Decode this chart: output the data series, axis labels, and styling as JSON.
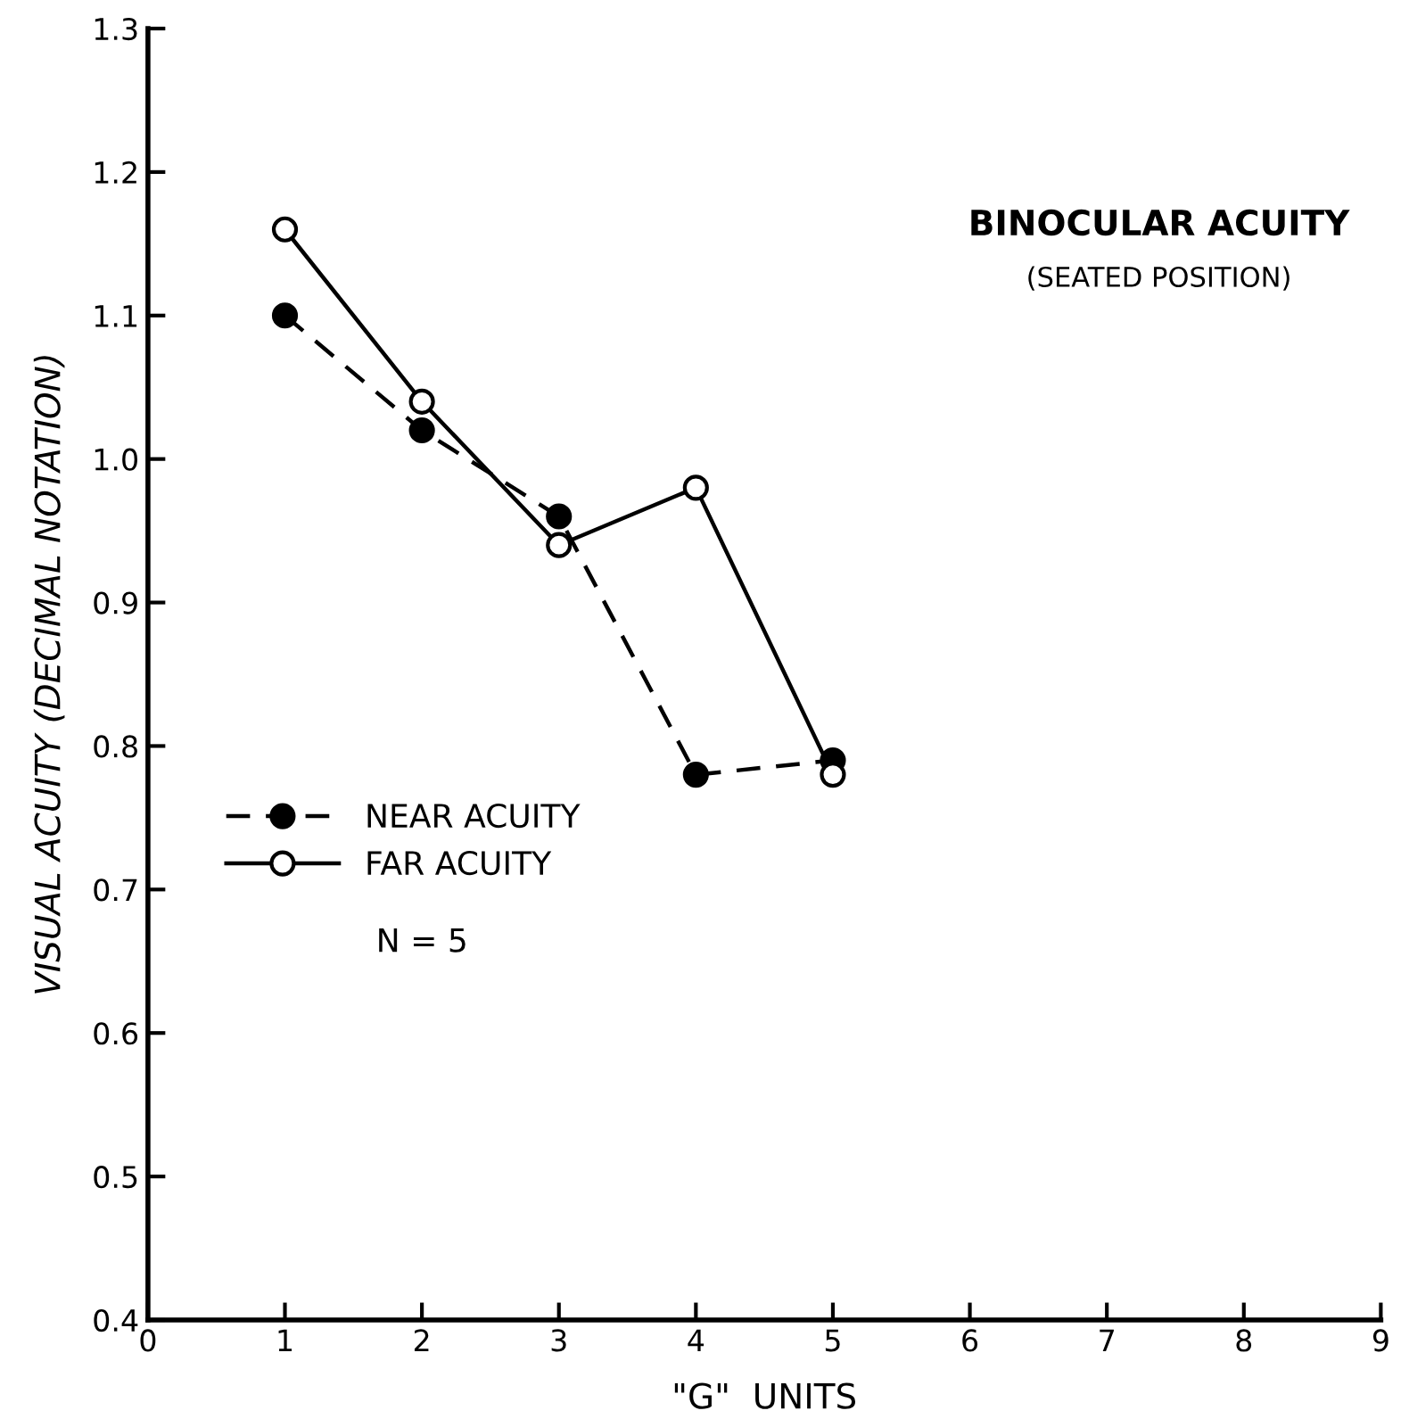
{
  "chart_data": {
    "type": "line",
    "title": "BINOCULAR ACUITY",
    "subtitle": "(SEATED POSITION)",
    "xlabel": "\"G\"  UNITS",
    "ylabel": "VISUAL ACUITY (DECIMAL NOTATION)",
    "x": [
      1,
      2,
      3,
      4,
      5
    ],
    "series": [
      {
        "name": "NEAR ACUITY",
        "color": "#000000",
        "values": [
          1.1,
          1.02,
          0.96,
          0.78,
          0.79
        ],
        "marker": "circle",
        "line_style": "dashed"
      },
      {
        "name": "FAR ACUITY",
        "color": "#000000",
        "values": [
          1.16,
          1.04,
          0.94,
          0.98,
          0.78
        ],
        "marker": "circle",
        "line_style": "solid"
      }
    ],
    "annotations": [
      "N = 5"
    ],
    "xlim": [
      0,
      9
    ],
    "xticks": [
      0,
      1,
      2,
      3,
      4,
      5,
      6,
      7,
      8,
      9
    ],
    "ylim": [
      0.4,
      1.3
    ],
    "yticks": [
      0.4,
      0.5,
      0.6,
      0.7,
      0.8,
      0.9,
      {
        "value": 1.0,
        "label": "1.0"
      },
      1.1,
      1.2,
      1.3
    ],
    "grid": false,
    "legend": "left"
  }
}
